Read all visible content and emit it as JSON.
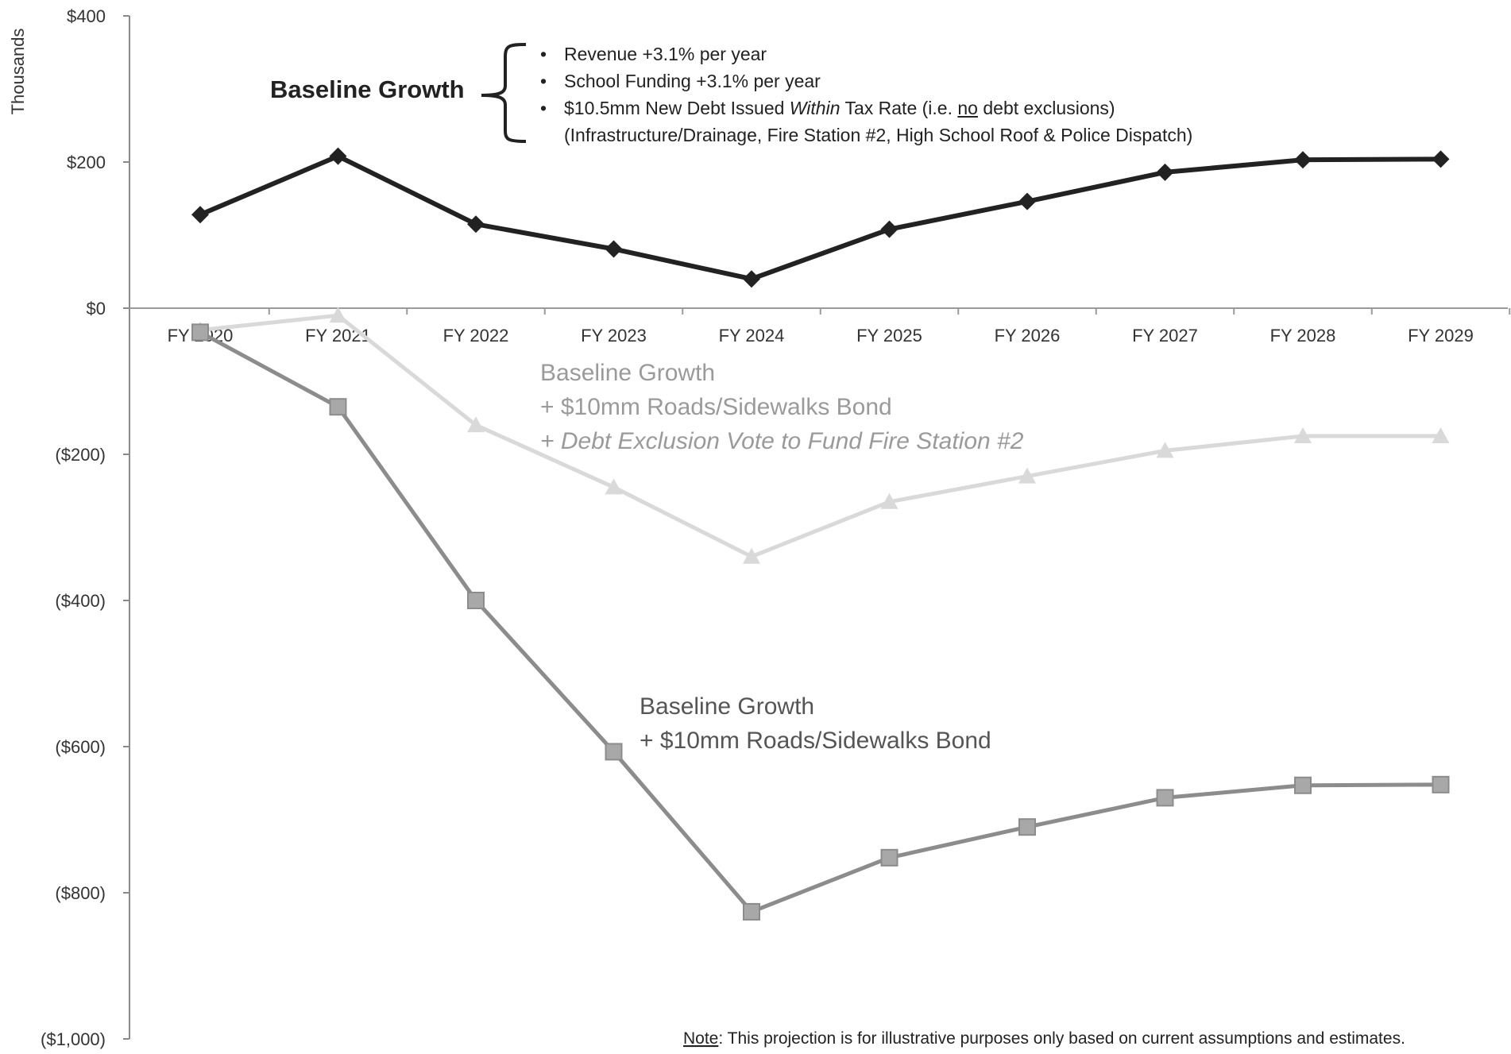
{
  "chart_data": {
    "type": "line",
    "categories": [
      "FY 2020",
      "FY 2021",
      "FY 2022",
      "FY 2023",
      "FY 2024",
      "FY 2025",
      "FY 2026",
      "FY 2027",
      "FY 2028",
      "FY 2029"
    ],
    "ylabel": "Thousands",
    "ylim": [
      -1000,
      400
    ],
    "yticks": [
      400,
      200,
      0,
      -200,
      -400,
      -600,
      -800,
      -1000
    ],
    "ytick_labels": [
      "$400",
      "$200",
      "$0",
      "($200)",
      "($400)",
      "($600)",
      "($800)",
      "($1,000)"
    ],
    "grid": false,
    "series": [
      {
        "name": "Baseline Growth",
        "marker": "diamond",
        "color": "#222222",
        "values": [
          128,
          208,
          115,
          81,
          40,
          108,
          146,
          186,
          203,
          204
        ]
      },
      {
        "name": "Baseline Growth + $10mm Roads/Sidewalks Bond + Debt Exclusion Vote to Fund Fire Station #2",
        "marker": "triangle",
        "color": "#d9d9d9",
        "values": [
          -30,
          -10,
          -160,
          -245,
          -340,
          -265,
          -230,
          -195,
          -175,
          -175
        ]
      },
      {
        "name": "Baseline Growth + $10mm Roads/Sidewalks Bond",
        "marker": "square",
        "color": "#8c8c8c",
        "values": [
          -33,
          -135,
          -400,
          -607,
          -826,
          -752,
          -710,
          -670,
          -653,
          -652
        ]
      }
    ]
  },
  "annotations": {
    "baseline_label": "Baseline Growth",
    "bullets": [
      "Revenue +3.1% per year",
      "School Funding +3.1% per year"
    ],
    "bullet3_pre": "$10.5mm New Debt Issued ",
    "bullet3_ital": "Within",
    "bullet3_mid": " Tax Rate (i.e. ",
    "bullet3_under": "no",
    "bullet3_post": " debt exclusions)",
    "bullet_detail": "(Infrastructure/Drainage, Fire Station #2, High School Roof & Police Dispatch)",
    "fire_line1": "Baseline Growth",
    "fire_line2": "+ $10mm Roads/Sidewalks Bond",
    "fire_line3": "+ Debt Exclusion Vote to Fund Fire Station #2",
    "roads_line1": "Baseline Growth",
    "roads_line2": "+ $10mm Roads/Sidewalks Bond",
    "note_label": "Note",
    "note_text": ":  This projection is for illustrative purposes only  based on  current assumptions and estimates."
  }
}
